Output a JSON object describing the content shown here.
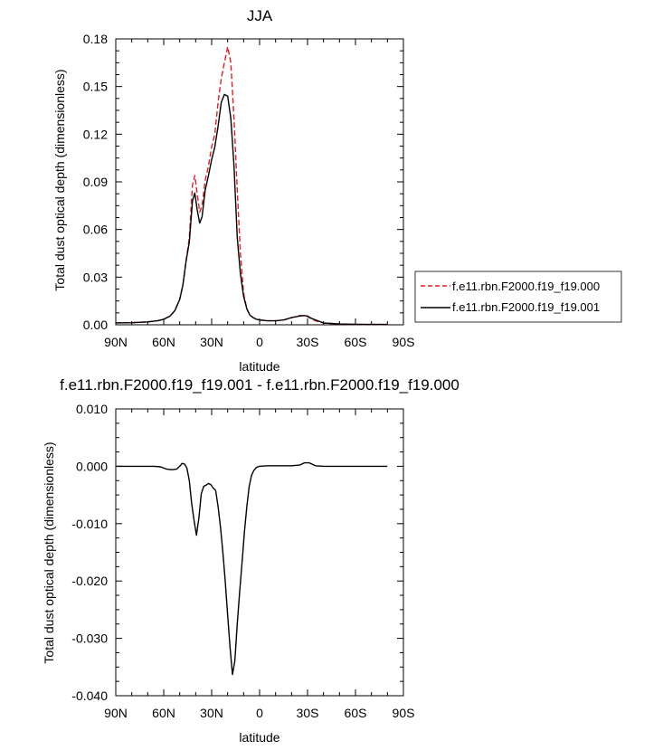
{
  "chart_data": [
    {
      "type": "line",
      "title": "JJA",
      "xlabel": "latitude",
      "ylabel": "Total dust optical depth (dimensionless)",
      "xlim": [
        90,
        -90
      ],
      "ylim": [
        0,
        0.18
      ],
      "x_tick_values": [
        90,
        60,
        30,
        0,
        -30,
        -60,
        -90
      ],
      "x_tick_labels": [
        "90N",
        "60N",
        "30N",
        "0",
        "30S",
        "60S",
        "90S"
      ],
      "y_tick_values": [
        0,
        0.03,
        0.06,
        0.09,
        0.12,
        0.15,
        0.18
      ],
      "y_tick_labels": [
        "0.00",
        "0.03",
        "0.06",
        "0.09",
        "0.12",
        "0.15",
        "0.18"
      ],
      "legend_position": "right",
      "series": [
        {
          "name": "f.e11.rbn.F2000.f19_f19.000",
          "color": "#e02020",
          "style": "dashed",
          "x": [
            90,
            80,
            70,
            64,
            60,
            56,
            53,
            50,
            48,
            46,
            44,
            42,
            40.5,
            39,
            37.5,
            36,
            34,
            32,
            30,
            28,
            26,
            24,
            22,
            20,
            18,
            16,
            14,
            12,
            10,
            8,
            6,
            4,
            2,
            0,
            -5,
            -10,
            -15,
            -20,
            -25,
            -28,
            -30,
            -32,
            -35,
            -40,
            -50,
            -60,
            -70,
            -80
          ],
          "y": [
            0.0012,
            0.0013,
            0.0018,
            0.0025,
            0.0035,
            0.0055,
            0.009,
            0.016,
            0.025,
            0.04,
            0.055,
            0.088,
            0.094,
            0.082,
            0.071,
            0.075,
            0.091,
            0.1,
            0.112,
            0.12,
            0.14,
            0.155,
            0.165,
            0.175,
            0.165,
            0.13,
            0.085,
            0.045,
            0.02,
            0.01,
            0.006,
            0.0045,
            0.0035,
            0.003,
            0.0025,
            0.0025,
            0.003,
            0.0045,
            0.0058,
            0.0058,
            0.0052,
            0.004,
            0.0025,
            0.001,
            0.0005,
            0.0003,
            0.0002,
            0.0002
          ]
        },
        {
          "name": "f.e11.rbn.F2000.f19_f19.001",
          "color": "#000000",
          "style": "solid",
          "x": [
            90,
            80,
            70,
            64,
            60,
            56,
            53,
            50,
            48,
            46,
            44,
            42,
            40.5,
            39,
            37.5,
            36,
            34,
            32,
            30,
            28,
            26,
            24,
            22,
            20,
            18,
            16,
            14,
            12,
            10,
            8,
            6,
            4,
            2,
            0,
            -5,
            -10,
            -15,
            -20,
            -25,
            -28,
            -30,
            -32,
            -35,
            -40,
            -50,
            -60,
            -70,
            -80
          ],
          "y": [
            0.0012,
            0.0013,
            0.0018,
            0.0025,
            0.0035,
            0.0055,
            0.009,
            0.016,
            0.025,
            0.04,
            0.052,
            0.078,
            0.083,
            0.072,
            0.064,
            0.068,
            0.085,
            0.094,
            0.104,
            0.112,
            0.125,
            0.14,
            0.145,
            0.144,
            0.13,
            0.1,
            0.055,
            0.032,
            0.018,
            0.01,
            0.006,
            0.0045,
            0.0035,
            0.003,
            0.0025,
            0.0025,
            0.003,
            0.0045,
            0.0055,
            0.0058,
            0.0055,
            0.0043,
            0.003,
            0.0012,
            0.0005,
            0.0003,
            0.0002,
            0.0002
          ]
        }
      ]
    },
    {
      "type": "line",
      "title": "f.e11.rbn.F2000.f19_f19.001 - f.e11.rbn.F2000.f19_f19.000",
      "xlabel": "latitude",
      "ylabel": "Total dust optical depth (dimensionless)",
      "xlim": [
        90,
        -90
      ],
      "ylim": [
        -0.04,
        0.01
      ],
      "x_tick_values": [
        90,
        60,
        30,
        0,
        -30,
        -60,
        -90
      ],
      "x_tick_labels": [
        "90N",
        "60N",
        "30N",
        "0",
        "30S",
        "60S",
        "90S"
      ],
      "y_tick_values": [
        0.01,
        0,
        -0.01,
        -0.02,
        -0.03,
        -0.04
      ],
      "y_tick_labels": [
        "0.010",
        "0.000",
        "-0.010",
        "-0.020",
        "-0.030",
        "-0.040"
      ],
      "series": [
        {
          "color": "#000000",
          "style": "solid",
          "x": [
            90,
            80,
            70,
            66,
            62,
            58,
            55,
            52,
            50,
            48.5,
            47,
            45.5,
            44,
            42.5,
            41,
            39.5,
            38,
            36.5,
            35,
            33.5,
            32,
            30.5,
            29,
            27.5,
            26,
            24.5,
            23,
            21.5,
            20,
            18.5,
            17,
            15.5,
            14,
            12.5,
            11,
            9.5,
            8,
            6.5,
            5,
            3.5,
            2,
            0,
            -5,
            -10,
            -15,
            -20,
            -25,
            -28,
            -31,
            -35,
            -40,
            -50,
            -60,
            -70,
            -80
          ],
          "y": [
            0,
            0,
            0,
            0,
            -0.0001,
            -0.0005,
            -0.0006,
            -0.0005,
            0,
            0.0005,
            0.0004,
            -0.0003,
            -0.0025,
            -0.0065,
            -0.0095,
            -0.012,
            -0.009,
            -0.0048,
            -0.0035,
            -0.0033,
            -0.003,
            -0.0032,
            -0.0038,
            -0.0042,
            -0.007,
            -0.0105,
            -0.015,
            -0.02,
            -0.026,
            -0.0315,
            -0.0363,
            -0.034,
            -0.0275,
            -0.022,
            -0.0168,
            -0.0115,
            -0.007,
            -0.0035,
            -0.0015,
            -0.0007,
            -0.0002,
            0,
            0.0001,
            0.0001,
            0.0001,
            0.0001,
            0.0002,
            0.0006,
            0.0006,
            0.0001,
            0,
            0,
            0,
            0,
            0
          ]
        }
      ]
    }
  ]
}
